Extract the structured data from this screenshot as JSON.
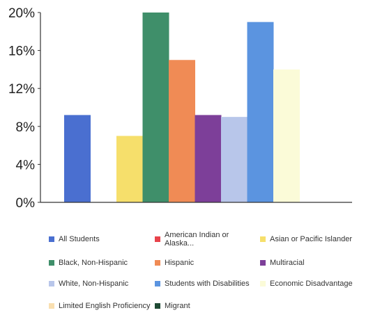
{
  "chart_data": {
    "type": "bar",
    "title": "",
    "xlabel": "",
    "ylabel": "",
    "ylim": [
      0,
      20
    ],
    "yticks": [
      "0%",
      "4%",
      "8%",
      "12%",
      "16%",
      "20%"
    ],
    "grid": false,
    "legend_position": "bottom",
    "series": [
      {
        "name": "All Students",
        "value": 9.2,
        "color": "#4a6fd0"
      },
      {
        "name": "American Indian or Alaska...",
        "value": 0,
        "color": "#e8434b"
      },
      {
        "name": "Asian or Pacific Islander",
        "value": 7,
        "color": "#f6df6b"
      },
      {
        "name": "Black, Non-Hispanic",
        "value": 20,
        "color": "#3f8f6a"
      },
      {
        "name": "Hispanic",
        "value": 15,
        "color": "#f08b55"
      },
      {
        "name": "Multiracial",
        "value": 9.2,
        "color": "#7d3f99"
      },
      {
        "name": "White, Non-Hispanic",
        "value": 9,
        "color": "#b8c6ea"
      },
      {
        "name": "Students with Disabilities",
        "value": 19,
        "color": "#5b94e0"
      },
      {
        "name": "Economic Disadvantage",
        "value": 14,
        "color": "#fbfbd8"
      },
      {
        "name": "Limited English Proficiency",
        "value": 0,
        "color": "#f9dfb0"
      },
      {
        "name": "Migrant",
        "value": 0,
        "color": "#1f4a34"
      }
    ]
  }
}
